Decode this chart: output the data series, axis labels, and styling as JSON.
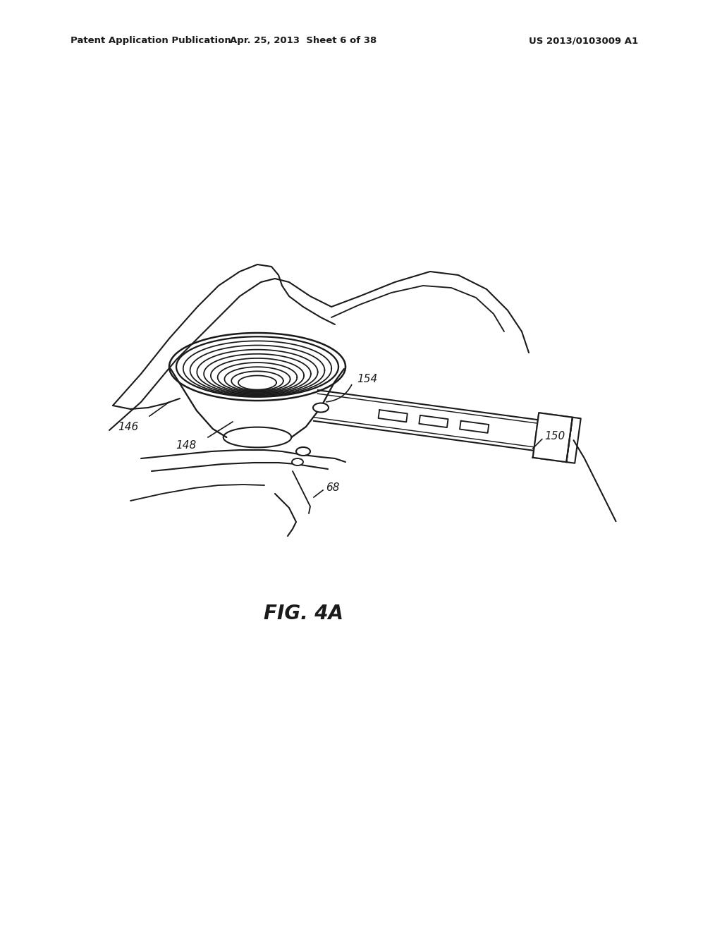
{
  "bg_color": "#ffffff",
  "line_color": "#1a1a1a",
  "header_left": "Patent Application Publication",
  "header_center": "Apr. 25, 2013  Sheet 6 of 38",
  "header_right": "US 2013/0103009 A1",
  "fig_caption": "FIG. 4A",
  "lw": 1.5
}
